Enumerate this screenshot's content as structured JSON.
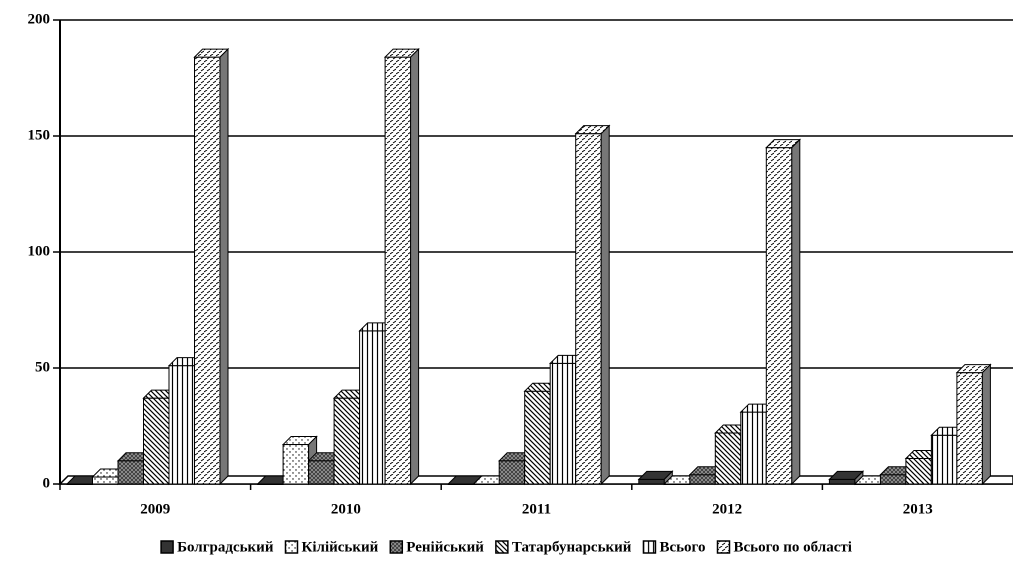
{
  "chart_data": {
    "type": "bar3d",
    "categories": [
      "2009",
      "2010",
      "2011",
      "2012",
      "2013"
    ],
    "series": [
      {
        "name": "Болградський",
        "color": "#333333",
        "values": [
          0,
          0,
          0,
          2,
          2
        ]
      },
      {
        "name": "Кілійський",
        "color": "#ffffff",
        "values": [
          3,
          17,
          0,
          0,
          0
        ]
      },
      {
        "name": "Ренійський",
        "color": "#808080",
        "values": [
          10,
          10,
          10,
          4,
          4
        ]
      },
      {
        "name": "Татарбунарський",
        "color": "#ffffff",
        "values": [
          37,
          37,
          40,
          22,
          11
        ]
      },
      {
        "name": "Всього",
        "color": "#ffffff",
        "values": [
          51,
          66,
          52,
          31,
          21
        ]
      },
      {
        "name": "Всього по області",
        "color": "#ffffff",
        "values": [
          184,
          184,
          151,
          145,
          48
        ]
      }
    ],
    "ylim": [
      0,
      200
    ],
    "yticks": [
      0,
      50,
      100,
      150,
      200
    ],
    "grid": true,
    "legend": "bottom"
  }
}
